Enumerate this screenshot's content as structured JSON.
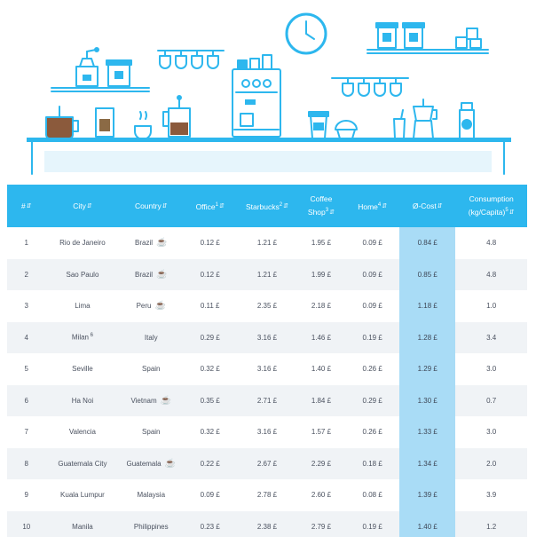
{
  "colors": {
    "accent": "#2db7ee",
    "avg_column": "#a9dcf6",
    "row_alt": "#f0f3f6",
    "text": "#4b5260"
  },
  "illustration": {
    "icons": [
      "clock-icon",
      "coffee-grinder-icon",
      "canister-icon",
      "hanging-mugs-icon",
      "espresso-machine-icon",
      "french-press-icon",
      "coffee-pot-icon",
      "coffee-bag-icon",
      "teacup-icon",
      "takeaway-cup-icon",
      "muffin-icon",
      "iced-glass-icon",
      "moka-pot-icon",
      "milk-bottle-icon",
      "counter-icon"
    ]
  },
  "table": {
    "headers": [
      {
        "label": "#",
        "sup": ""
      },
      {
        "label": "City",
        "sup": ""
      },
      {
        "label": "Country",
        "sup": ""
      },
      {
        "label": "Office",
        "sup": "1"
      },
      {
        "label": "Starbucks",
        "sup": "2"
      },
      {
        "label": "Coffee Shop",
        "sup": "3"
      },
      {
        "label": "Home",
        "sup": "4"
      },
      {
        "label": "Ø-Cost",
        "sup": ""
      },
      {
        "label": "Consumption (kg/Capita)",
        "sup": "5"
      }
    ],
    "rows": [
      {
        "rank": "1",
        "city": "Rio de Janeiro",
        "city_sup": "",
        "country": "Brazil",
        "bean": true,
        "office": "0.12 £",
        "starbucks": "1.21 £",
        "shop": "1.95 £",
        "home": "0.09 £",
        "avg": "0.84 £",
        "consumption": "4.8"
      },
      {
        "rank": "2",
        "city": "Sao Paulo",
        "city_sup": "",
        "country": "Brazil",
        "bean": true,
        "office": "0.12 £",
        "starbucks": "1.21 £",
        "shop": "1.99 £",
        "home": "0.09 £",
        "avg": "0.85 £",
        "consumption": "4.8"
      },
      {
        "rank": "3",
        "city": "Lima",
        "city_sup": "",
        "country": "Peru",
        "bean": true,
        "office": "0.11 £",
        "starbucks": "2.35 £",
        "shop": "2.18 £",
        "home": "0.09 £",
        "avg": "1.18 £",
        "consumption": "1.0"
      },
      {
        "rank": "4",
        "city": "Milan",
        "city_sup": "6",
        "country": "Italy",
        "bean": false,
        "office": "0.29 £",
        "starbucks": "3.16 £",
        "shop": "1.46 £",
        "home": "0.19 £",
        "avg": "1.28 £",
        "consumption": "3.4"
      },
      {
        "rank": "5",
        "city": "Seville",
        "city_sup": "",
        "country": "Spain",
        "bean": false,
        "office": "0.32 £",
        "starbucks": "3.16 £",
        "shop": "1.40 £",
        "home": "0.26 £",
        "avg": "1.29 £",
        "consumption": "3.0"
      },
      {
        "rank": "6",
        "city": "Ha Noi",
        "city_sup": "",
        "country": "Vietnam",
        "bean": true,
        "office": "0.35 £",
        "starbucks": "2.71 £",
        "shop": "1.84 £",
        "home": "0.29 £",
        "avg": "1.30 £",
        "consumption": "0.7"
      },
      {
        "rank": "7",
        "city": "Valencia",
        "city_sup": "",
        "country": "Spain",
        "bean": false,
        "office": "0.32 £",
        "starbucks": "3.16 £",
        "shop": "1.57 £",
        "home": "0.26 £",
        "avg": "1.33 £",
        "consumption": "3.0"
      },
      {
        "rank": "8",
        "city": "Guatemala City",
        "city_sup": "",
        "country": "Guatemala",
        "bean": true,
        "office": "0.22 £",
        "starbucks": "2.67 £",
        "shop": "2.29 £",
        "home": "0.18 £",
        "avg": "1.34 £",
        "consumption": "2.0"
      },
      {
        "rank": "9",
        "city": "Kuala Lumpur",
        "city_sup": "",
        "country": "Malaysia",
        "bean": false,
        "office": "0.09 £",
        "starbucks": "2.78 £",
        "shop": "2.60 £",
        "home": "0.08 £",
        "avg": "1.39 £",
        "consumption": "3.9"
      },
      {
        "rank": "10",
        "city": "Manila",
        "city_sup": "",
        "country": "Philippines",
        "bean": false,
        "office": "0.23 £",
        "starbucks": "2.38 £",
        "shop": "2.79 £",
        "home": "0.19 £",
        "avg": "1.40 £",
        "consumption": "1.2"
      }
    ]
  }
}
